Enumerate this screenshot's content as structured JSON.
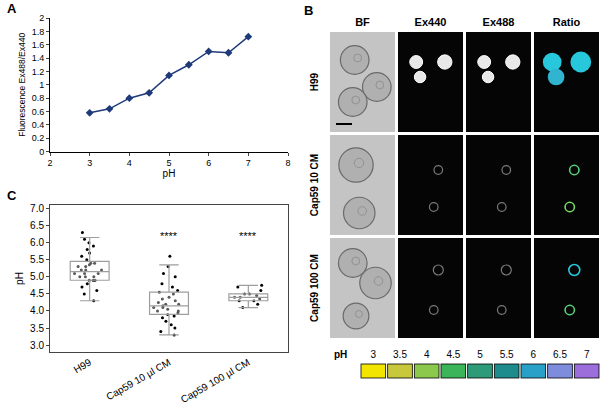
{
  "chart_data": [
    {
      "panel": "A",
      "type": "line",
      "x": [
        3,
        3.5,
        4,
        4.5,
        5,
        5.5,
        6,
        6.5,
        7
      ],
      "values": [
        0.58,
        0.64,
        0.8,
        0.88,
        1.14,
        1.3,
        1.5,
        1.48,
        1.72
      ],
      "xlabel": "pH",
      "ylabel": "Fluorescence Ex488/Ex440",
      "xlim": [
        2,
        8
      ],
      "xticks": [
        2,
        3,
        4,
        5,
        6,
        7,
        8
      ],
      "ylim": [
        0,
        2
      ],
      "yticks": [
        0,
        0.2,
        0.4,
        0.6,
        0.8,
        1,
        1.2,
        1.4,
        1.6,
        1.8,
        2
      ],
      "color": "#1f3a7a",
      "marker": "diamond",
      "line_style": "solid",
      "grid": false
    },
    {
      "panel": "C",
      "type": "box",
      "categories": [
        "H99",
        "Cap59 10 µl CM",
        "Cap59 100 µl CM"
      ],
      "q1": [
        4.9,
        3.9,
        4.3
      ],
      "median": [
        5.15,
        4.15,
        4.4
      ],
      "q3": [
        5.45,
        4.55,
        4.5
      ],
      "lowerfence": [
        4.3,
        3.3,
        4.1
      ],
      "upperfence": [
        6.15,
        5.35,
        4.75
      ],
      "points": [
        [
          5.1,
          5.3,
          4.9,
          5.6,
          5.0,
          4.7,
          5.4,
          5.2,
          6.0,
          4.5,
          5.8,
          5.1,
          4.9,
          5.3,
          5.5,
          4.8,
          5.2,
          6.3,
          4.3,
          5.0,
          5.7,
          5.1,
          4.6,
          5.4,
          5.9,
          5.2,
          4.9,
          5.0,
          5.35,
          6.1
        ],
        [
          4.1,
          3.9,
          4.3,
          4.6,
          3.7,
          4.0,
          4.2,
          5.0,
          3.5,
          4.4,
          3.8,
          4.15,
          4.8,
          3.3,
          4.05,
          4.5,
          5.3,
          3.95,
          4.25,
          3.6,
          4.7,
          4.1,
          5.6,
          3.85,
          4.35,
          4.0,
          3.4,
          4.55,
          4.2,
          5.1
        ],
        [
          4.3,
          4.4,
          4.5,
          4.35,
          4.2,
          4.75,
          4.45,
          4.1,
          4.6,
          4.4,
          4.3,
          4.7,
          4.5
        ]
      ],
      "ylabel": "pH",
      "ylim": [
        2.8,
        7.1
      ],
      "yticks": [
        {
          "value": 3,
          "label": "3.0"
        },
        {
          "value": 3.5,
          "label": "3.5"
        },
        {
          "value": 4,
          "label": "4.0"
        },
        {
          "value": 4.5,
          "label": "4.5"
        },
        {
          "value": 5,
          "label": "5.0"
        },
        {
          "value": 5.5,
          "label": "5.5"
        },
        {
          "value": 6,
          "label": "6.0"
        },
        {
          "value": 6.5,
          "label": "6.5"
        },
        {
          "value": 7,
          "label": "7.0"
        }
      ],
      "annotations": [
        {
          "text": "****",
          "x": 1,
          "y": 6.2
        },
        {
          "text": "****",
          "x": 2,
          "y": 6.2
        }
      ],
      "color": "#9e9e9e",
      "grid": false
    }
  ],
  "panel_b": {
    "panel": "B",
    "columns": [
      "BF",
      "Ex440",
      "Ex488",
      "Ratio"
    ],
    "rows": [
      "H99",
      "Cap59 10 CM",
      "Cap59 100 CM"
    ],
    "scale": {
      "label": "pH",
      "ticks": [
        3,
        3.5,
        4,
        4.5,
        5,
        5.5,
        6,
        6.5,
        7
      ],
      "colors": [
        "#f2e600",
        "#c8c83c",
        "#8cc84b",
        "#3cb45a",
        "#2d9b78",
        "#1e8c8c",
        "#28a0c8",
        "#7d8cdc",
        "#9b6edc"
      ]
    }
  }
}
